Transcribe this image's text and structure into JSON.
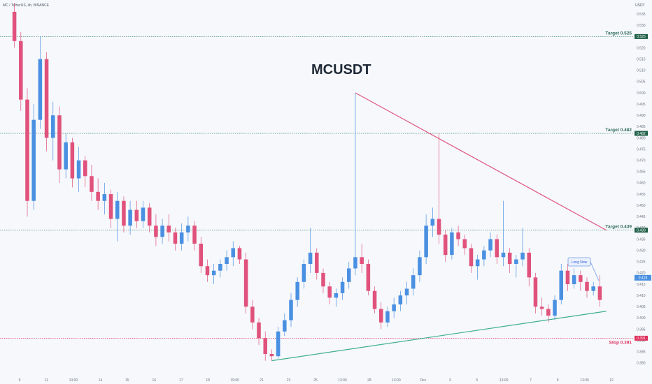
{
  "header": {
    "symbol_line": "MC / TetherUS, 4h, BINANCE"
  },
  "chart_data": {
    "type": "candlestick",
    "title": "MCUSDT",
    "unit_label": "USDT",
    "ylim": [
      0.375,
      0.54
    ],
    "y_ticks": [
      0.38,
      0.385,
      0.39,
      0.395,
      0.4,
      0.405,
      0.41,
      0.415,
      0.42,
      0.425,
      0.43,
      0.435,
      0.44,
      0.445,
      0.45,
      0.455,
      0.46,
      0.465,
      0.47,
      0.475,
      0.48,
      0.485,
      0.49,
      0.495,
      0.5,
      0.505,
      0.51,
      0.515,
      0.52,
      0.525,
      0.53,
      0.535
    ],
    "x_labels": [
      "9",
      "11",
      "13:00",
      "14",
      "15",
      "16",
      "17",
      "18",
      "19:00",
      "21",
      "23",
      "25",
      "13:00",
      "28",
      "13:00",
      "Dec",
      "3",
      "5",
      "13:00",
      "7",
      "9",
      "13:00",
      "12"
    ],
    "up_color": "#4a90e2",
    "down_color": "#e0527c",
    "candles": [
      [
        0.536,
        0.54,
        0.52,
        0.523
      ],
      [
        0.523,
        0.527,
        0.492,
        0.497
      ],
      [
        0.497,
        0.502,
        0.445,
        0.452
      ],
      [
        0.452,
        0.495,
        0.448,
        0.488
      ],
      [
        0.488,
        0.525,
        0.484,
        0.515
      ],
      [
        0.515,
        0.518,
        0.474,
        0.48
      ],
      [
        0.48,
        0.496,
        0.47,
        0.49
      ],
      [
        0.49,
        0.494,
        0.46,
        0.466
      ],
      [
        0.466,
        0.482,
        0.462,
        0.478
      ],
      [
        0.478,
        0.48,
        0.458,
        0.462
      ],
      [
        0.462,
        0.476,
        0.456,
        0.47
      ],
      [
        0.47,
        0.472,
        0.458,
        0.463
      ],
      [
        0.463,
        0.468,
        0.452,
        0.456
      ],
      [
        0.456,
        0.462,
        0.448,
        0.452
      ],
      [
        0.452,
        0.46,
        0.446,
        0.455
      ],
      [
        0.455,
        0.457,
        0.44,
        0.444
      ],
      [
        0.444,
        0.456,
        0.434,
        0.452
      ],
      [
        0.452,
        0.454,
        0.438,
        0.441
      ],
      [
        0.441,
        0.452,
        0.437,
        0.448
      ],
      [
        0.448,
        0.452,
        0.44,
        0.443
      ],
      [
        0.443,
        0.452,
        0.44,
        0.449
      ],
      [
        0.449,
        0.451,
        0.438,
        0.441
      ],
      [
        0.441,
        0.446,
        0.432,
        0.436
      ],
      [
        0.436,
        0.444,
        0.433,
        0.441
      ],
      [
        0.441,
        0.446,
        0.434,
        0.438
      ],
      [
        0.438,
        0.44,
        0.43,
        0.433
      ],
      [
        0.433,
        0.442,
        0.43,
        0.438
      ],
      [
        0.438,
        0.445,
        0.434,
        0.441
      ],
      [
        0.441,
        0.443,
        0.43,
        0.433
      ],
      [
        0.433,
        0.436,
        0.42,
        0.423
      ],
      [
        0.423,
        0.426,
        0.416,
        0.419
      ],
      [
        0.419,
        0.424,
        0.415,
        0.421
      ],
      [
        0.421,
        0.426,
        0.418,
        0.424
      ],
      [
        0.424,
        0.43,
        0.421,
        0.427
      ],
      [
        0.427,
        0.434,
        0.423,
        0.431
      ],
      [
        0.431,
        0.432,
        0.424,
        0.426
      ],
      [
        0.426,
        0.429,
        0.402,
        0.405
      ],
      [
        0.405,
        0.408,
        0.395,
        0.398
      ],
      [
        0.398,
        0.4,
        0.388,
        0.391
      ],
      [
        0.391,
        0.394,
        0.381,
        0.384
      ],
      [
        0.384,
        0.386,
        0.381,
        0.383
      ],
      [
        0.383,
        0.396,
        0.382,
        0.394
      ],
      [
        0.394,
        0.402,
        0.392,
        0.399
      ],
      [
        0.399,
        0.411,
        0.396,
        0.408
      ],
      [
        0.408,
        0.418,
        0.405,
        0.416
      ],
      [
        0.416,
        0.426,
        0.413,
        0.424
      ],
      [
        0.424,
        0.44,
        0.42,
        0.429
      ],
      [
        0.429,
        0.431,
        0.417,
        0.42
      ],
      [
        0.42,
        0.422,
        0.411,
        0.414
      ],
      [
        0.414,
        0.416,
        0.406,
        0.409
      ],
      [
        0.409,
        0.413,
        0.405,
        0.411
      ],
      [
        0.411,
        0.418,
        0.408,
        0.416
      ],
      [
        0.416,
        0.425,
        0.413,
        0.422
      ],
      [
        0.422,
        0.5,
        0.419,
        0.427
      ],
      [
        0.427,
        0.433,
        0.42,
        0.424
      ],
      [
        0.424,
        0.426,
        0.41,
        0.412
      ],
      [
        0.412,
        0.414,
        0.402,
        0.404
      ],
      [
        0.404,
        0.407,
        0.395,
        0.398
      ],
      [
        0.398,
        0.405,
        0.396,
        0.403
      ],
      [
        0.403,
        0.409,
        0.4,
        0.406
      ],
      [
        0.406,
        0.412,
        0.403,
        0.41
      ],
      [
        0.41,
        0.416,
        0.406,
        0.413
      ],
      [
        0.413,
        0.422,
        0.41,
        0.419
      ],
      [
        0.419,
        0.43,
        0.416,
        0.427
      ],
      [
        0.427,
        0.446,
        0.424,
        0.441
      ],
      [
        0.441,
        0.449,
        0.436,
        0.444
      ],
      [
        0.444,
        0.482,
        0.433,
        0.437
      ],
      [
        0.437,
        0.439,
        0.425,
        0.428
      ],
      [
        0.428,
        0.44,
        0.426,
        0.438
      ],
      [
        0.438,
        0.441,
        0.432,
        0.435
      ],
      [
        0.435,
        0.437,
        0.428,
        0.431
      ],
      [
        0.431,
        0.433,
        0.42,
        0.423
      ],
      [
        0.423,
        0.428,
        0.417,
        0.426
      ],
      [
        0.426,
        0.432,
        0.423,
        0.43
      ],
      [
        0.43,
        0.438,
        0.427,
        0.435
      ],
      [
        0.435,
        0.437,
        0.424,
        0.427
      ],
      [
        0.427,
        0.452,
        0.423,
        0.429
      ],
      [
        0.429,
        0.431,
        0.42,
        0.424
      ],
      [
        0.424,
        0.428,
        0.418,
        0.426
      ],
      [
        0.426,
        0.44,
        0.423,
        0.429
      ],
      [
        0.429,
        0.431,
        0.414,
        0.418
      ],
      [
        0.418,
        0.42,
        0.402,
        0.405
      ],
      [
        0.405,
        0.409,
        0.401,
        0.404
      ],
      [
        0.404,
        0.406,
        0.398,
        0.401
      ],
      [
        0.401,
        0.41,
        0.399,
        0.408
      ],
      [
        0.408,
        0.424,
        0.406,
        0.421
      ],
      [
        0.421,
        0.424,
        0.412,
        0.415
      ],
      [
        0.415,
        0.422,
        0.413,
        0.419
      ],
      [
        0.419,
        0.421,
        0.412,
        0.416
      ],
      [
        0.416,
        0.418,
        0.409,
        0.412
      ],
      [
        0.412,
        0.416,
        0.41,
        0.414
      ],
      [
        0.414,
        0.419,
        0.405,
        0.408
      ]
    ],
    "annotations": {
      "targets": [
        {
          "label": "Target 0.525",
          "value": 0.525,
          "badge": "0.525"
        },
        {
          "label": "Target 0.482",
          "value": 0.482,
          "badge": "0.482"
        },
        {
          "label": "Target 0.439",
          "value": 0.439,
          "badge": "0.439"
        }
      ],
      "stop": {
        "label": "Stop 0.391",
        "value": 0.391,
        "badge": "0.391"
      },
      "current_price": "0.418",
      "callout": "Long Now",
      "resistance_line": [
        [
          53,
          0.5
        ],
        [
          92,
          0.439
        ]
      ],
      "support_line": [
        [
          40,
          0.381
        ],
        [
          92,
          0.403
        ]
      ]
    }
  }
}
